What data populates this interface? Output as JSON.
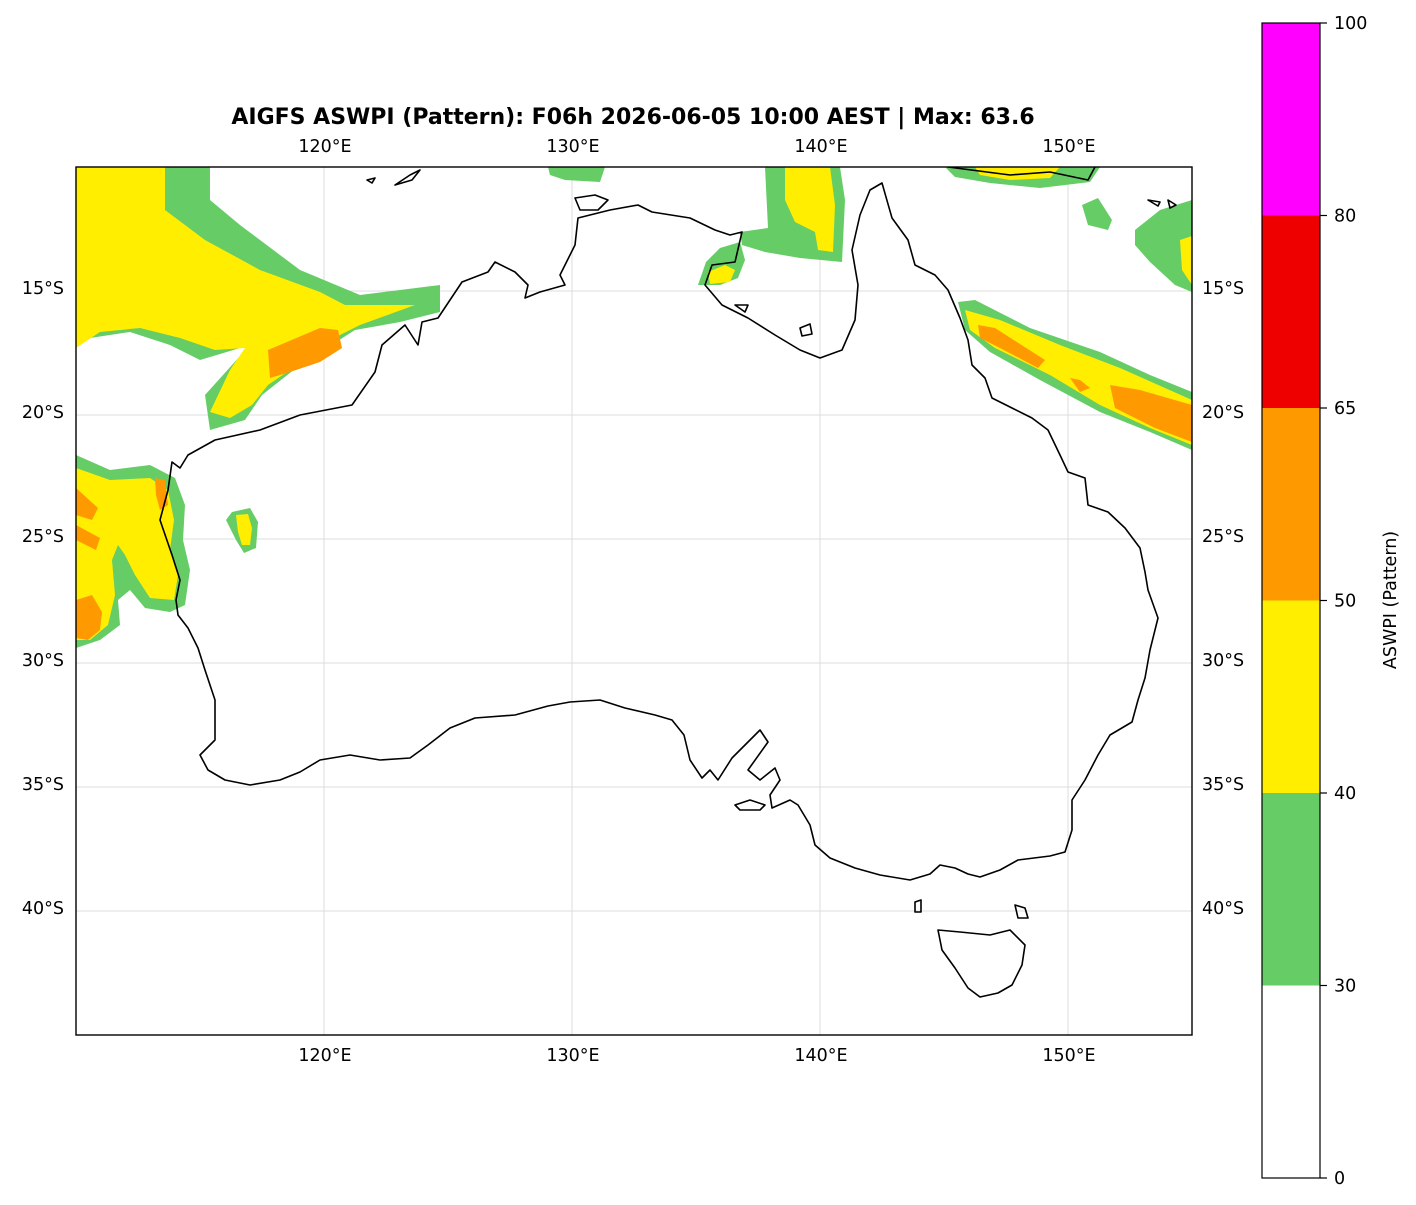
{
  "title": "AIGFS ASWPI (Pattern): F06h 2026-06-05 10:00 AEST | Max: 63.6",
  "map": {
    "lon_range": [
      110,
      155
    ],
    "lat_range": [
      -45,
      -10
    ],
    "lon_ticks": [
      {
        "value": 120,
        "label": "120°E"
      },
      {
        "value": 130,
        "label": "130°E"
      },
      {
        "value": 140,
        "label": "140°E"
      },
      {
        "value": 150,
        "label": "150°E"
      }
    ],
    "lat_ticks": [
      {
        "value": -15,
        "label": "15°S"
      },
      {
        "value": -20,
        "label": "20°S"
      },
      {
        "value": -25,
        "label": "25°S"
      },
      {
        "value": -30,
        "label": "30°S"
      },
      {
        "value": -35,
        "label": "35°S"
      },
      {
        "value": -40,
        "label": "40°S"
      }
    ],
    "gridlines": true,
    "coastline_color": "#000000",
    "grid_color": "#dddddd"
  },
  "colorbar": {
    "label": "ASWPI (Pattern)",
    "orientation": "vertical",
    "position": "right",
    "levels": [
      {
        "from": 0,
        "to": 30,
        "color": "#ffffff"
      },
      {
        "from": 30,
        "to": 40,
        "color": "#66cc66"
      },
      {
        "from": 40,
        "to": 50,
        "color": "#ffee00"
      },
      {
        "from": 50,
        "to": 65,
        "color": "#ff9900"
      },
      {
        "from": 65,
        "to": 80,
        "color": "#ee0000"
      },
      {
        "from": 80,
        "to": 100,
        "color": "#ff00ff"
      }
    ],
    "tick_labels": [
      "0",
      "30",
      "40",
      "50",
      "65",
      "80",
      "100"
    ]
  }
}
